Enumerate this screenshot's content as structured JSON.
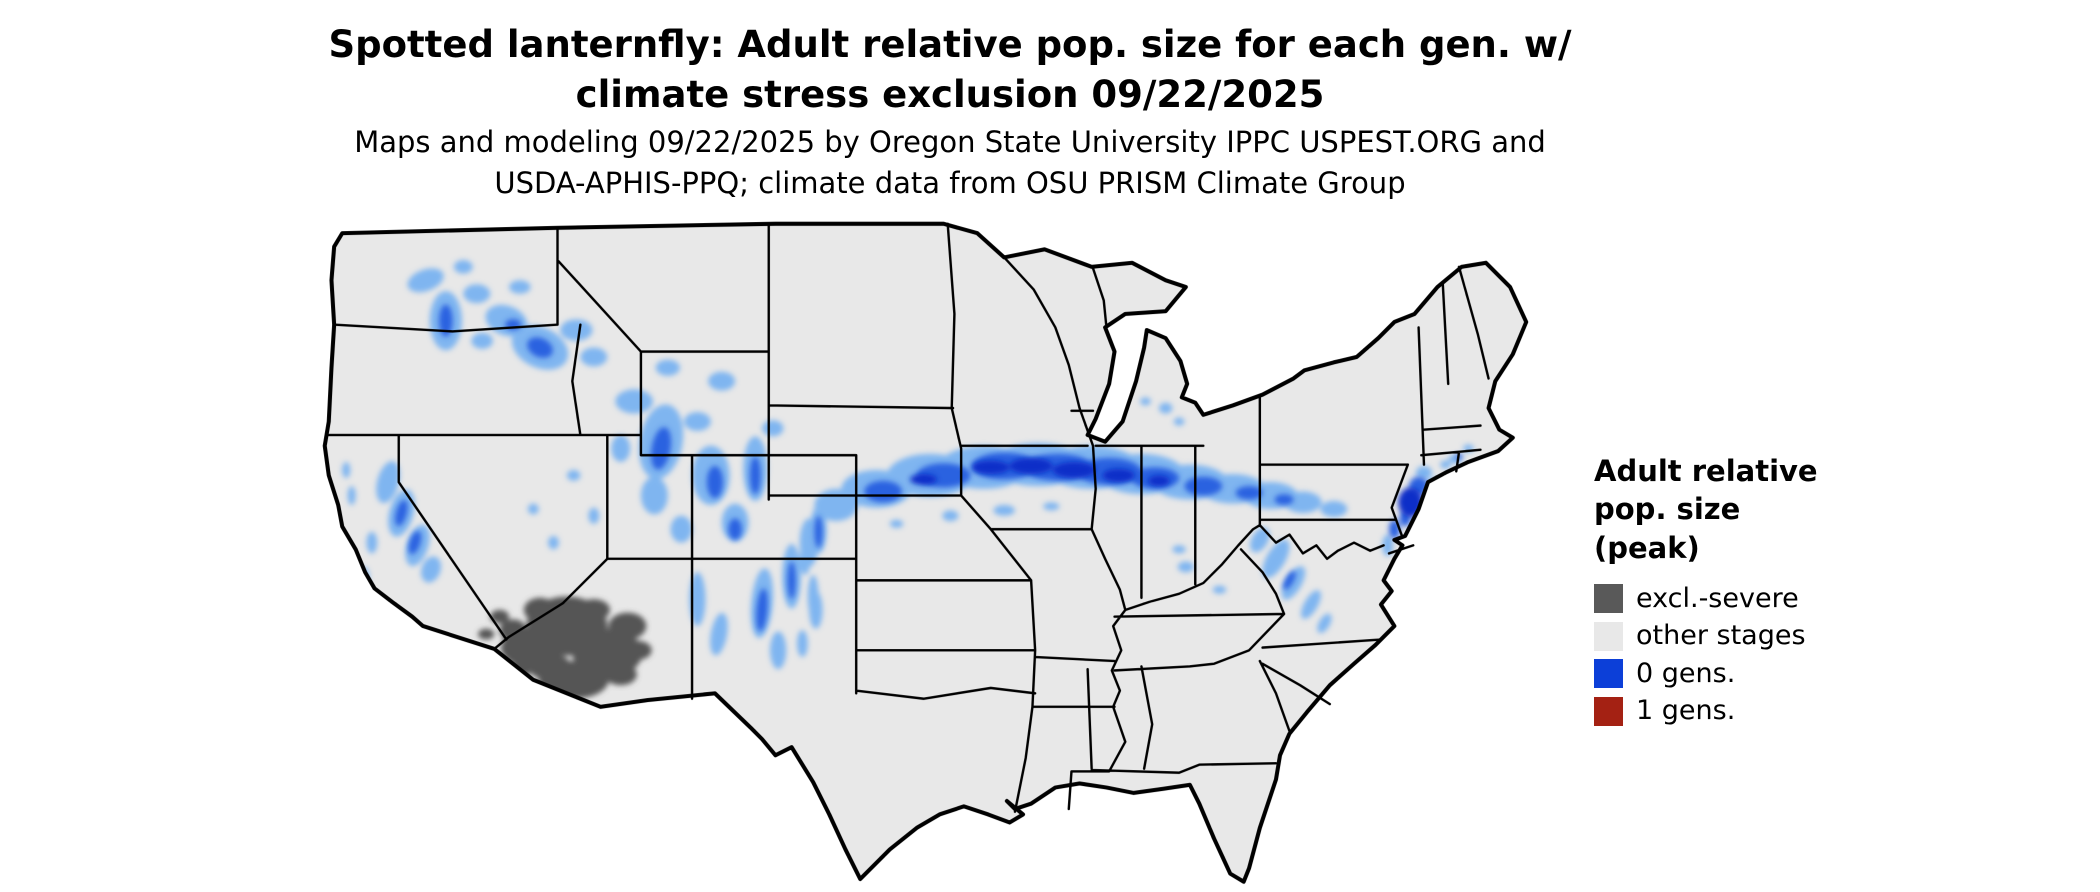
{
  "title": "Spotted lanternfly: Adult relative pop. size for each gen. w/\nclimate stress exclusion 09/22/2025",
  "subtitle": "Maps and modeling 09/22/2025 by Oregon State University IPPC USPEST.ORG and\nUSDA-APHIS-PPQ; climate data from OSU PRISM Climate Group",
  "map": {
    "region_shown": "Contiguous United States",
    "colors": {
      "state_fill": "#e8e8e8",
      "state_border": "#000000",
      "background": "#ffffff",
      "population_blue_light": "#7fb5f0",
      "population_blue_mid": "#2a62e0",
      "population_blue_dark": "#0b2fc8",
      "exclusion_gray": "#555555"
    }
  },
  "legend": {
    "title": "Adult relative\npop. size\n(peak)",
    "items": [
      {
        "label": "excl.-severe",
        "color": "#595959"
      },
      {
        "label": "other stages",
        "color": "#e8e8e8"
      },
      {
        "label": "0 gens.",
        "color": "#0c3fd8"
      },
      {
        "label": "1 gens.",
        "color": "#a42113"
      }
    ]
  }
}
